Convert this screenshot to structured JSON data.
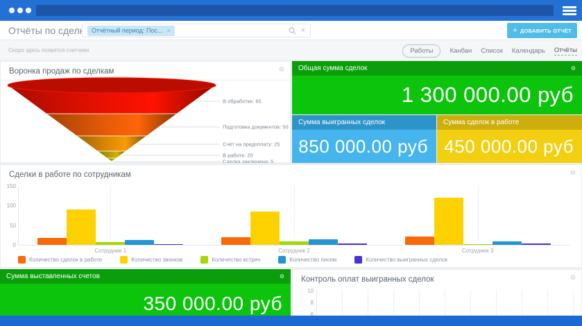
{
  "header": {
    "title": "Отчёты по сделкам",
    "favorite_icon": "☆",
    "filter_chip": "Отчётный период: Пос...",
    "chip_close": "×",
    "search_close": "×",
    "add_report_plus": "+",
    "add_report_label": "ДОБАВИТЬ ОТЧЁТ",
    "settings_icon": "⚙"
  },
  "subheader": {
    "counters_hint": "Скоро здесь появятся счетчики",
    "tabs": [
      {
        "label": "Работы",
        "pill": true,
        "active": false
      },
      {
        "label": "Канбан",
        "pill": false,
        "active": false
      },
      {
        "label": "Список",
        "pill": false,
        "active": false
      },
      {
        "label": "Календарь",
        "pill": false,
        "active": false
      },
      {
        "label": "Отчёты",
        "pill": false,
        "active": true
      }
    ]
  },
  "tiles": {
    "total": {
      "title": "Общая сумма сделок",
      "value": "1 300 000.00 руб",
      "header_color": "#0a9e0a",
      "body_color": "#0cc40c"
    },
    "won": {
      "title": "Сумма выигранных сделок",
      "value": "850 000.00 руб",
      "header_color": "#2d94ca",
      "body_color": "#46b5ee"
    },
    "progress": {
      "title": "Сумма сделок в работе",
      "value": "450 000.00 руб",
      "header_color": "#ceae0c",
      "body_color": "#f2d011"
    },
    "invoices": {
      "title": "Сумма выставленных счетов",
      "value": "350 000.00 руб",
      "header_color": "#0a9e0a",
      "body_color": "#0cc40c"
    }
  },
  "chart_data": [
    {
      "type": "funnel",
      "title": "Воронка продаж по сделкам",
      "stages": [
        {
          "label": "В обработке",
          "value": 65,
          "color": "#e81000"
        },
        {
          "label": "Подготовка документов",
          "value": 50,
          "color": "#e55a08"
        },
        {
          "label": "Счёт на предоплату",
          "value": 25,
          "color": "#dd8a02"
        },
        {
          "label": "В работе",
          "value": 20,
          "color": "#bb9e02"
        },
        {
          "label": "Сделка заключена",
          "value": 5,
          "color": "#9aa600"
        }
      ]
    },
    {
      "type": "bar",
      "title": "Сделки в работе по сотрудникам",
      "categories": [
        "Сотрудник 1",
        "Сотрудник 2",
        "Сотрудник 3"
      ],
      "series": [
        {
          "name": "Количество сделок в работе",
          "color": "#f96908",
          "values": [
            18,
            20,
            22
          ]
        },
        {
          "name": "Количество звонков",
          "color": "#fdd200",
          "values": [
            90,
            85,
            120
          ]
        },
        {
          "name": "Количество встреч",
          "color": "#a4d905",
          "values": [
            7,
            8,
            2
          ]
        },
        {
          "name": "Количество писем",
          "color": "#2196d3",
          "values": [
            13,
            15,
            8
          ]
        },
        {
          "name": "Количество выигранных сделок",
          "color": "#4a2fd6",
          "values": [
            2,
            3,
            3
          ]
        }
      ],
      "ylim": [
        0,
        150
      ],
      "yticks": [
        0,
        50,
        100,
        150
      ],
      "legend_position": "bottom"
    },
    {
      "type": "bar",
      "title": "Контроль оплат выигранных сделок",
      "categories": [],
      "series": [],
      "ylim": [
        0,
        10
      ],
      "yticks_visible": [
        10,
        8,
        6
      ]
    }
  ]
}
